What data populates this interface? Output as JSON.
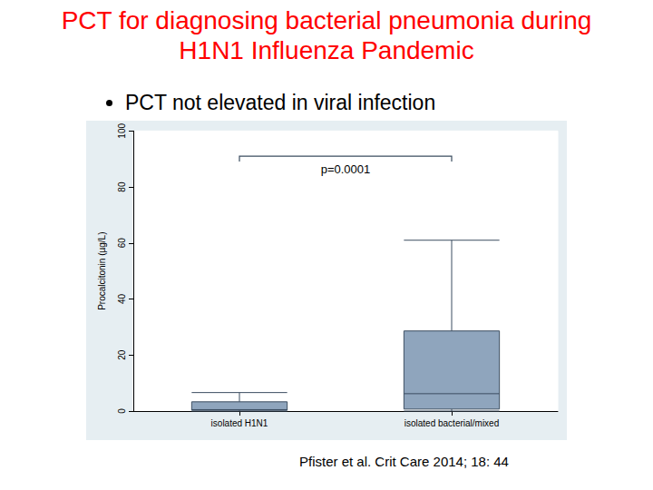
{
  "slide": {
    "title": [
      "PCT for diagnosing bacterial pneumonia during",
      "H1N1 Influenza Pandemic"
    ],
    "bullet": "PCT not elevated in viral infection",
    "source": "Pfister et al. Crit Care 2014; 18: 44"
  },
  "chart_data": {
    "type": "boxplot",
    "ylabel": "Procalcitonin (µg/L)",
    "categories": [
      "isolated H1N1",
      "isolated bacterial/mixed"
    ],
    "values": [
      [
        0,
        0.3,
        0.5,
        3.3,
        6.6
      ],
      [
        0,
        0.7,
        6.2,
        28.6,
        61
      ]
    ],
    "color": "#8fa5bd",
    "ylim": [
      0,
      100
    ],
    "yticks": [
      0,
      20,
      40,
      60,
      80,
      100
    ],
    "grid": false,
    "annotation": {
      "text": "p=0.0001",
      "y": 91
    }
  }
}
